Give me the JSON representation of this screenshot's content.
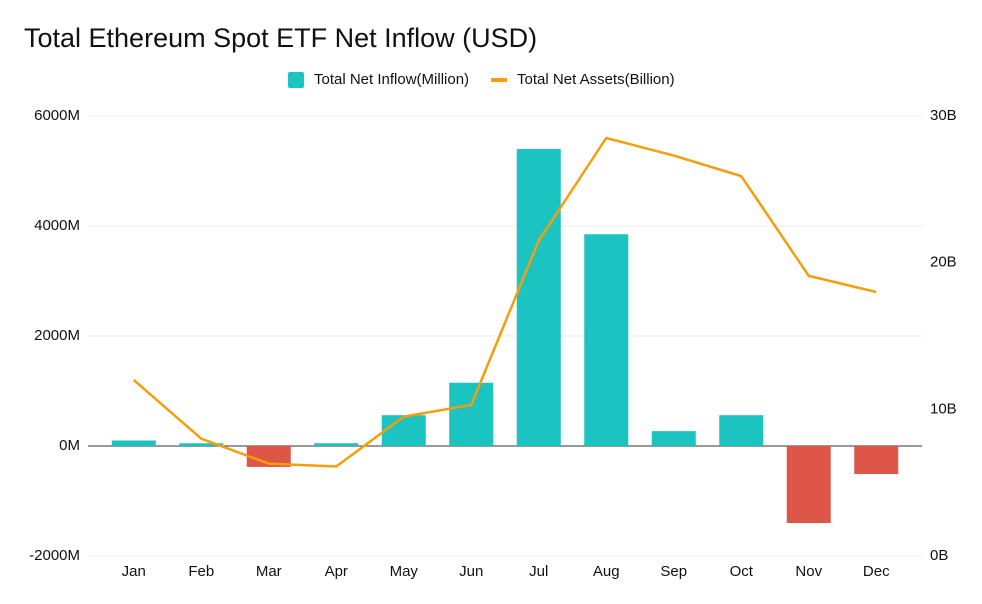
{
  "chart_data": {
    "type": "bar_line",
    "title": "Total Ethereum Spot ETF Net Inflow (USD)",
    "categories": [
      "Jan",
      "Feb",
      "Mar",
      "Apr",
      "May",
      "Jun",
      "Jul",
      "Aug",
      "Sep",
      "Oct",
      "Nov",
      "Dec"
    ],
    "series": [
      {
        "name": "Total Net Inflow(Million)",
        "type": "bar",
        "color": "#1bc4c0",
        "negative_color": "#de5647",
        "values": [
          100,
          50,
          -380,
          50,
          560,
          1150,
          5400,
          3850,
          270,
          560,
          -1400,
          -510
        ]
      },
      {
        "name": "Total Net Assets(Billion)",
        "type": "line",
        "axis": "y2",
        "color": "#f59e0b",
        "values": [
          12.0,
          8.0,
          6.3,
          6.1,
          9.5,
          10.3,
          21.5,
          28.5,
          27.3,
          25.9,
          19.1,
          18.0
        ]
      }
    ],
    "ylim": [
      -2000,
      6000
    ],
    "yticks": [
      {
        "value": -2000,
        "label": "-2000M"
      },
      {
        "value": 0,
        "label": "0M"
      },
      {
        "value": 2000,
        "label": "2000M"
      },
      {
        "value": 4000,
        "label": "4000M"
      },
      {
        "value": 6000,
        "label": "6000M"
      }
    ],
    "y2lim": [
      0,
      30
    ],
    "y2ticks": [
      {
        "value": 0,
        "label": "0B"
      },
      {
        "value": 10,
        "label": "10B"
      },
      {
        "value": 20,
        "label": "20B"
      },
      {
        "value": 30,
        "label": "30B"
      }
    ],
    "grid": true
  }
}
